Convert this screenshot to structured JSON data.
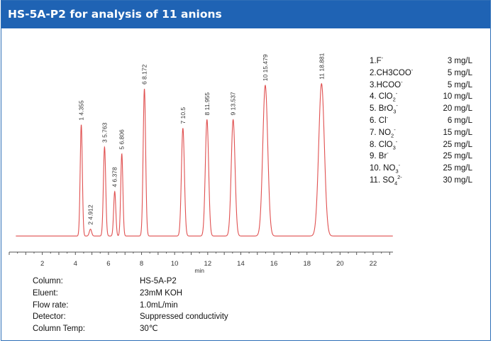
{
  "header": {
    "title": "HS-5A-P2 for analysis of 11 anions"
  },
  "colors": {
    "header_bg": "#1f63b4",
    "trace": "#e05050",
    "axis": "#555555"
  },
  "chart_data": {
    "type": "line",
    "title": "HS-5A-P2 for analysis of 11 anions",
    "xlabel": "min",
    "ylabel": "",
    "xlim": [
      0,
      23.2
    ],
    "xticks": [
      "2",
      "4",
      "6",
      "8",
      "10",
      "12",
      "14",
      "16",
      "18",
      "20",
      "22"
    ],
    "ylim": [
      0,
      1
    ],
    "grid": false,
    "baseline": 0.09,
    "peaks": [
      {
        "id": "1",
        "label": "1 4.355",
        "rt": 4.355,
        "height": 0.74,
        "width": 0.065
      },
      {
        "id": "2",
        "label": "2 4.912",
        "rt": 4.912,
        "height": 0.13,
        "width": 0.07
      },
      {
        "id": "3",
        "label": "3 5.763",
        "rt": 5.763,
        "height": 0.61,
        "width": 0.07
      },
      {
        "id": "4",
        "label": "4 6.378",
        "rt": 6.378,
        "height": 0.35,
        "width": 0.065
      },
      {
        "id": "5",
        "label": "5 6.806",
        "rt": 6.806,
        "height": 0.57,
        "width": 0.065
      },
      {
        "id": "6",
        "label": "6 8.172",
        "rt": 8.172,
        "height": 0.95,
        "width": 0.075
      },
      {
        "id": "7",
        "label": "7 10.5",
        "rt": 10.5,
        "height": 0.72,
        "width": 0.09
      },
      {
        "id": "8",
        "label": "8 11.955",
        "rt": 11.955,
        "height": 0.77,
        "width": 0.1
      },
      {
        "id": "9",
        "label": "9 13.537",
        "rt": 13.537,
        "height": 0.77,
        "width": 0.115
      },
      {
        "id": "10",
        "label": "10 15.479",
        "rt": 15.479,
        "height": 0.97,
        "width": 0.15
      },
      {
        "id": "11",
        "label": "11 18.881",
        "rt": 18.881,
        "height": 0.98,
        "width": 0.17
      }
    ]
  },
  "legend": [
    {
      "name": "1.F",
      "charge": "-",
      "sub": "",
      "conc": "3 mg/L"
    },
    {
      "name": "2.CH3COO",
      "charge": "-",
      "sub": "",
      "conc": "5 mg/L"
    },
    {
      "name": "3.HCOO",
      "charge": "-",
      "sub": "",
      "conc": "5 mg/L"
    },
    {
      "name": "4. ClO",
      "sub": "2",
      "charge": "-",
      "conc": "10 mg/L"
    },
    {
      "name": "5. BrO",
      "sub": "3",
      "charge": "-",
      "conc": "20 mg/L"
    },
    {
      "name": "6. Cl",
      "charge": "-",
      "sub": "",
      "conc": "6 mg/L"
    },
    {
      "name": "7. NO",
      "sub": "2",
      "charge": "-",
      "conc": "15 mg/L"
    },
    {
      "name": "8. ClO",
      "sub": "3",
      "charge": "-",
      "conc": "25 mg/L"
    },
    {
      "name": "9. Br",
      "charge": "-",
      "sub": "",
      "conc": "25 mg/L"
    },
    {
      "name": "10. NO",
      "sub": "3",
      "charge": "-",
      "conc": "25 mg/L"
    },
    {
      "name": "11. SO",
      "sub": "4",
      "charge": "2-",
      "conc": "30 mg/L"
    }
  ],
  "conditions": [
    {
      "key": "Column:",
      "value": "HS-5A-P2"
    },
    {
      "key": "Eluent:",
      "value": "23mM KOH"
    },
    {
      "key": "Flow rate:",
      "value": "1.0mL/min"
    },
    {
      "key": "Detector:",
      "value": "Suppressed conductivity"
    },
    {
      "key": "Column Temp:",
      "value": "30℃"
    }
  ]
}
